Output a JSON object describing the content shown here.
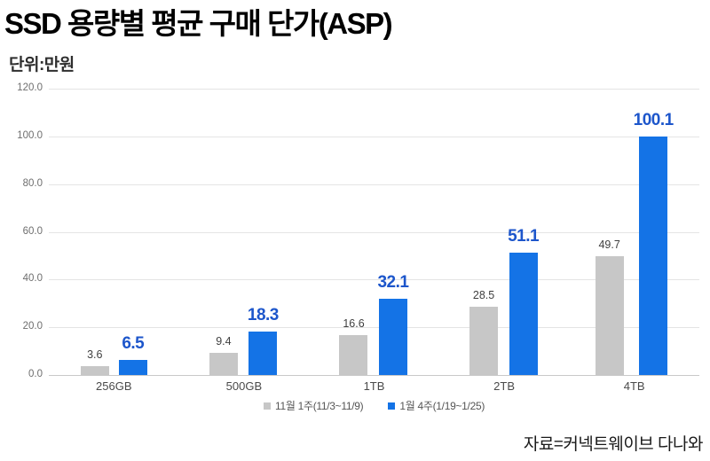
{
  "title": "SSD 용량별 평균 구매 단가(ASP)",
  "unit_label": "단위:만원",
  "source": "자료=커넥트웨이브 다나와",
  "colors": {
    "series_prev": "#c7c7c7",
    "series_curr": "#1473e6",
    "value_label_curr": "#1d56cb",
    "value_label_prev": "#3f3f3f",
    "gridline": "#e4e4e4",
    "axis_text": "#6e6e6e"
  },
  "chart_data": {
    "type": "bar",
    "categories": [
      "256GB",
      "500GB",
      "1TB",
      "2TB",
      "4TB"
    ],
    "series": [
      {
        "name": "11월 1주(11/3~11/9)",
        "color": "#c7c7c7",
        "values": [
          3.6,
          9.4,
          16.6,
          28.5,
          49.7
        ]
      },
      {
        "name": "1월 4주(1/19~1/25)",
        "color": "#1473e6",
        "values": [
          6.5,
          18.3,
          32.1,
          51.1,
          100.1
        ]
      }
    ],
    "title": "SSD 용량별 평균 구매 단가(ASP)",
    "xlabel": "",
    "ylabel": "단위:만원",
    "ylim": [
      0,
      120
    ],
    "ytick_step": 20,
    "yticks": [
      "120.0",
      "100.0",
      "80.0",
      "60.0",
      "40.0",
      "20.0",
      "0.0"
    ],
    "grid": true,
    "legend_position": "bottom"
  }
}
